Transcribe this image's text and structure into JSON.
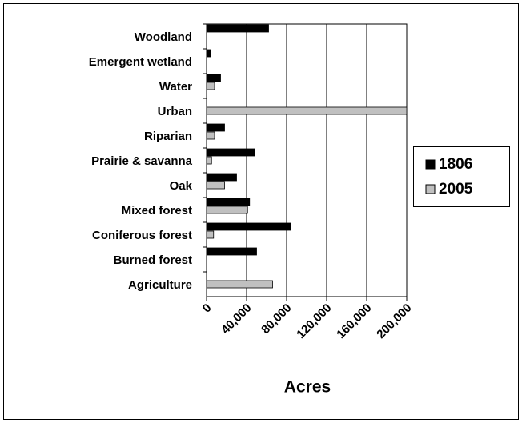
{
  "chart_data": {
    "type": "hbar",
    "categories": [
      "Woodland",
      "Emergent wetland",
      "Water",
      "Urban",
      "Riparian",
      "Prairie & savanna",
      "Oak",
      "Mixed forest",
      "Coniferous forest",
      "Burned forest",
      "Agriculture"
    ],
    "series": [
      {
        "name": "1806",
        "color": "#000000",
        "values": [
          62000,
          4000,
          14000,
          null,
          18000,
          48000,
          30000,
          43000,
          84000,
          50000,
          null
        ]
      },
      {
        "name": "2005",
        "color": "#c0c0c0",
        "values": [
          null,
          null,
          8000,
          200000,
          8000,
          5000,
          18000,
          41000,
          7000,
          null,
          66000
        ]
      }
    ],
    "xlabel": "Acres",
    "xlim": [
      0,
      200000
    ],
    "xticks": [
      0,
      {
        "value": 40000,
        "label": "40,000"
      },
      {
        "value": 80000,
        "label": "80,000"
      },
      {
        "value": 120000,
        "label": "120,000"
      },
      {
        "value": 160000,
        "label": "160,000"
      },
      {
        "value": 200000,
        "label": "200,000"
      }
    ],
    "grid": true,
    "legend": "right"
  }
}
